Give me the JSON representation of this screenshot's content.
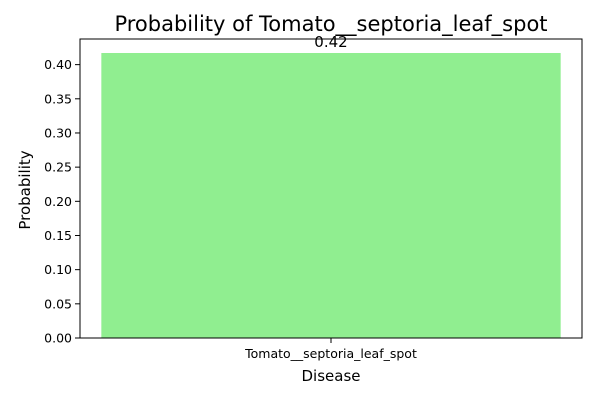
{
  "chart_data": {
    "type": "bar",
    "title": "Probability of Tomato__septoria_leaf_spot",
    "xlabel": "Disease",
    "ylabel": "Probability",
    "categories": [
      "Tomato__septoria_leaf_spot"
    ],
    "values": [
      0.417
    ],
    "data_labels": [
      "0.42"
    ],
    "ylim": [
      0,
      0.4375
    ],
    "yticks": [
      0,
      0.05,
      0.1,
      0.15,
      0.2,
      0.25,
      0.3,
      0.35,
      0.4
    ],
    "ytick_labels": [
      "0.00",
      "0.05",
      "0.10",
      "0.15",
      "0.20",
      "0.25",
      "0.30",
      "0.35",
      "0.40"
    ],
    "bar_color": "#90ee90",
    "grid": false,
    "legend": "none"
  }
}
